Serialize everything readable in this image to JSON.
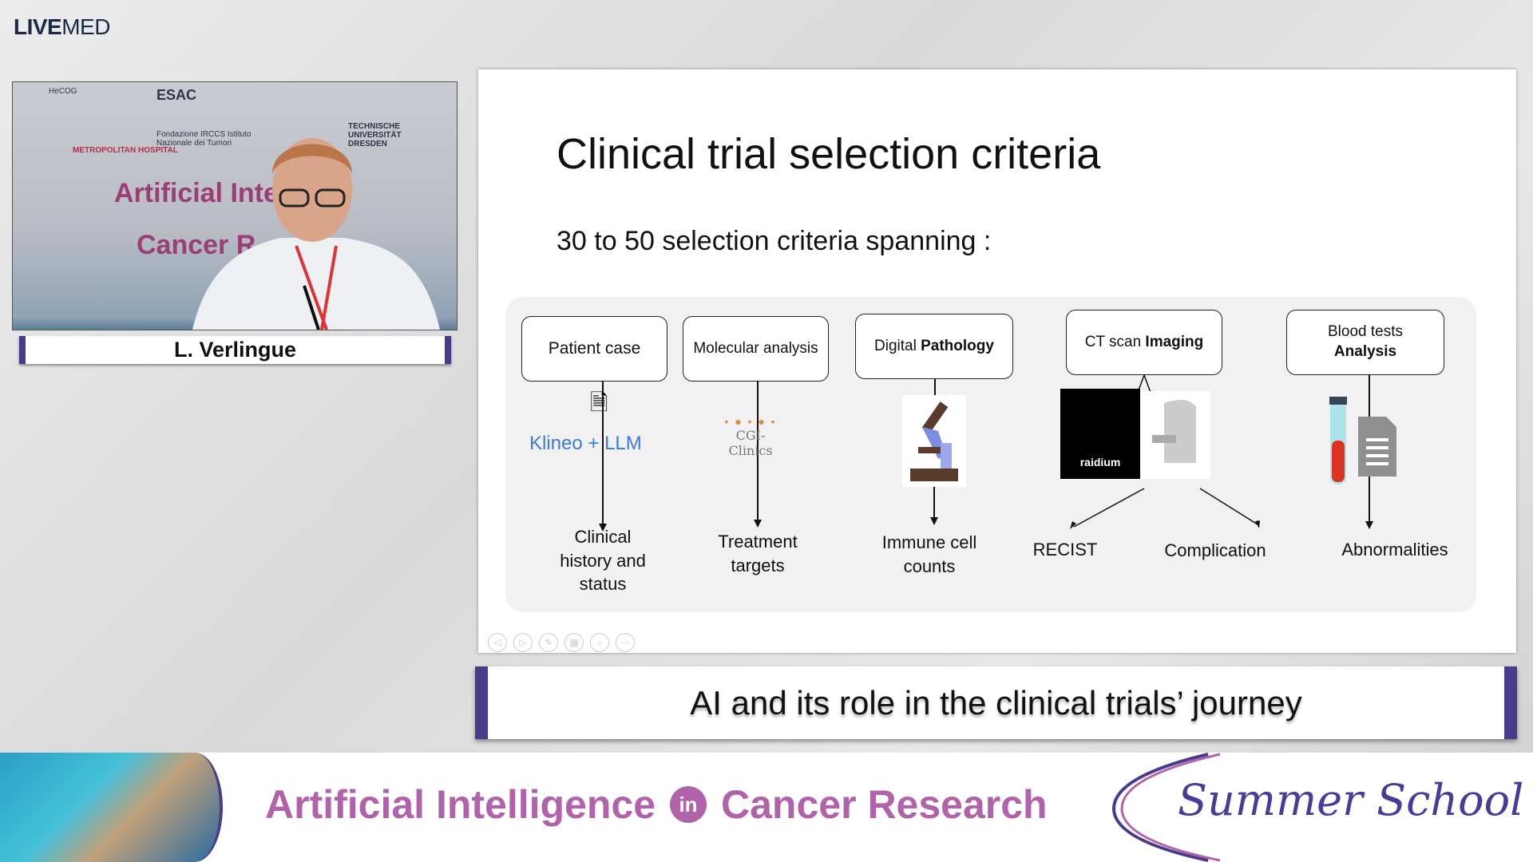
{
  "brand": {
    "logo_bold": "LIVE",
    "logo_light": "MED"
  },
  "video": {
    "speaker_name": "L. Verlingue",
    "backdrop_text_1": "Artificial Inte",
    "backdrop_text_2": "Cancer R",
    "sponsors": [
      "HeCOG",
      "ESAC",
      "Fondazione IRCCS Istituto Nazionale dei Tumori",
      "TECHNISCHE UNIVERSITÄT DRESDEN",
      "METROPOLITAN HOSPITAL"
    ]
  },
  "slide": {
    "title": "Clinical trial selection criteria",
    "subtitle": "30 to 50 selection criteria spanning :",
    "columns": [
      {
        "header": "Patient case",
        "tools": "Klineo + LLM",
        "output": "Clinical history and status"
      },
      {
        "header": "Molecular analysis",
        "tools": "CGI-Clinics",
        "output": "Treatment targets"
      },
      {
        "header_normal": "Digital ",
        "header_bold": "Pathology",
        "output": "Immune cell counts"
      },
      {
        "header_normal": "CT scan ",
        "header_bold": "Imaging",
        "tools": "raidium",
        "outputs": [
          "RECIST",
          "Complication"
        ]
      },
      {
        "header_normal": "Blood tests",
        "header_bold": "Analysis",
        "output": "Abnormalities"
      }
    ],
    "toolbar_icons": [
      "prev-icon",
      "next-icon",
      "pen-icon",
      "slides-icon",
      "zoom-icon",
      "more-icon"
    ]
  },
  "caption": "AI and its role in the clinical trials’ journey",
  "banner": {
    "title_1": "Artificial Intelligence",
    "in": "in",
    "title_2": "Cancer Research",
    "summer_school": "Summer School"
  },
  "colors": {
    "accent_purple": "#4a3a8a",
    "banner_pink": "#b063a8"
  }
}
